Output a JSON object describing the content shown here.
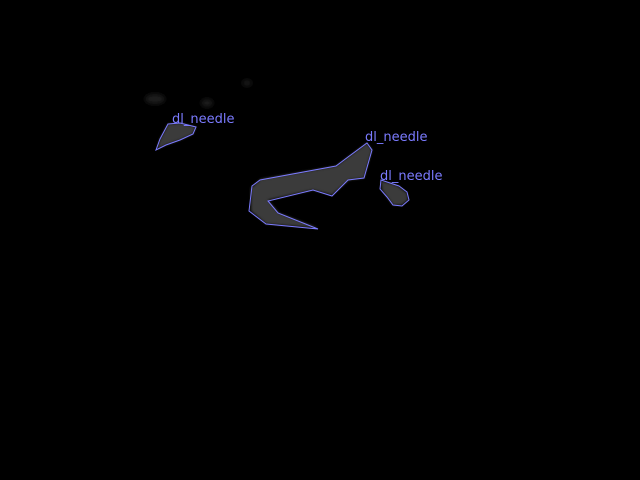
{
  "annotation_color": "#7b7bff",
  "region_fill": "#3a3a3a",
  "annotations": [
    {
      "label": "dl_needle"
    },
    {
      "label": "dl_needle"
    },
    {
      "label": "dl_needle"
    }
  ]
}
